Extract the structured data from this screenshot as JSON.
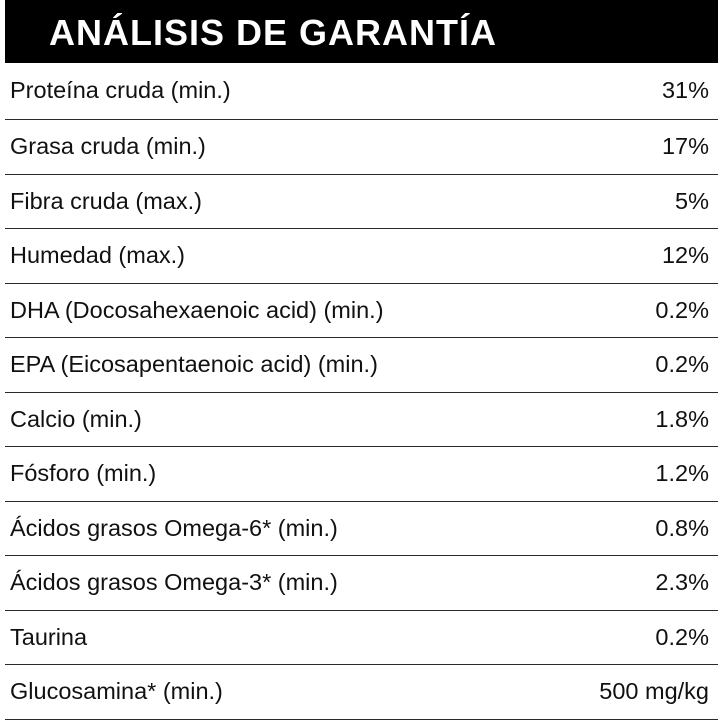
{
  "header": {
    "title": "ANÁLISIS DE GARANTÍA"
  },
  "rows": [
    {
      "label": "Proteína cruda (min.)",
      "value": "31%"
    },
    {
      "label": "Grasa cruda (min.)",
      "value": "17%"
    },
    {
      "label": "Fibra cruda (max.)",
      "value": "5%"
    },
    {
      "label": "Humedad (max.)",
      "value": "12%"
    },
    {
      "label": "DHA (Docosahexaenoic acid) (min.)",
      "value": "0.2%"
    },
    {
      "label": "EPA (Eicosapentaenoic acid) (min.)",
      "value": "0.2%"
    },
    {
      "label": "Calcio (min.)",
      "value": "1.8%"
    },
    {
      "label": "Fósforo (min.)",
      "value": "1.2%"
    },
    {
      "label": "Ácidos grasos Omega-6* (min.)",
      "value": "0.8%"
    },
    {
      "label": "Ácidos grasos Omega-3* (min.)",
      "value": "2.3%"
    },
    {
      "label": "Taurina",
      "value": "0.2%"
    },
    {
      "label": "Glucosamina* (min.)",
      "value": "500 mg/kg"
    }
  ]
}
